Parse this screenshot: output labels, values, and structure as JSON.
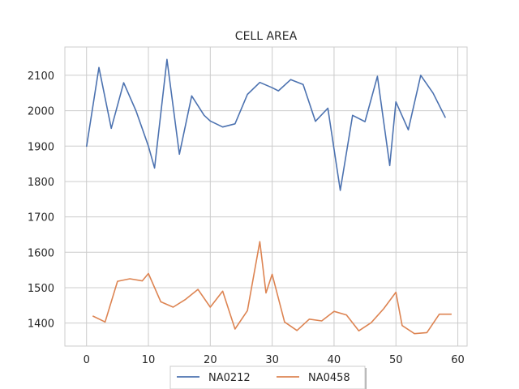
{
  "chart_data": {
    "type": "line",
    "title": "CELL AREA",
    "xlabel": "",
    "ylabel": "",
    "xlim": [
      -3.5,
      61.5
    ],
    "ylim": [
      1335,
      2180
    ],
    "xticks": [
      0,
      10,
      20,
      30,
      40,
      50,
      60
    ],
    "yticks": [
      1400,
      1500,
      1600,
      1700,
      1800,
      1900,
      2000,
      2100
    ],
    "grid": true,
    "legend_position": "bottom-center",
    "series": [
      {
        "name": "NA0212",
        "color": "#4c72b0",
        "x": [
          0,
          2,
          4,
          6,
          8,
          10,
          11,
          13,
          15,
          17,
          19,
          20,
          22,
          24,
          26,
          28,
          30,
          31,
          33,
          35,
          37,
          39,
          41,
          43,
          45,
          47,
          49,
          50,
          52,
          54,
          56,
          58
        ],
        "y": [
          1898,
          2122,
          1950,
          2079,
          1999,
          1900,
          1838,
          2145,
          1877,
          2042,
          1987,
          1971,
          1954,
          1963,
          2046,
          2080,
          2065,
          2056,
          2088,
          2074,
          1970,
          2007,
          1775,
          1987,
          1969,
          2097,
          1845,
          2025,
          1946,
          2100,
          2050,
          1980
        ]
      },
      {
        "name": "NA0458",
        "color": "#dd8452",
        "x": [
          1,
          3,
          5,
          7,
          9,
          10,
          12,
          14,
          16,
          18,
          20,
          22,
          24,
          26,
          28,
          29,
          30,
          32,
          34,
          36,
          38,
          40,
          42,
          44,
          46,
          48,
          50,
          51,
          53,
          55,
          57,
          59
        ],
        "y": [
          1420,
          1403,
          1518,
          1525,
          1519,
          1540,
          1460,
          1445,
          1467,
          1495,
          1445,
          1490,
          1383,
          1435,
          1630,
          1485,
          1538,
          1403,
          1379,
          1411,
          1406,
          1433,
          1423,
          1378,
          1401,
          1440,
          1487,
          1393,
          1370,
          1373,
          1425,
          1425
        ]
      }
    ]
  }
}
